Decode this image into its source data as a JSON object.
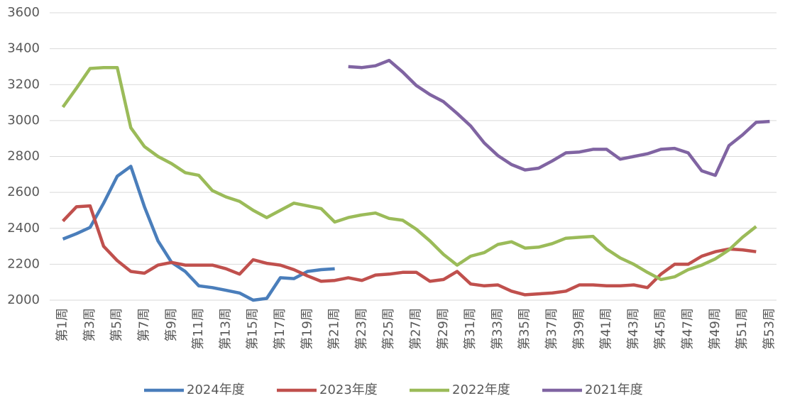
{
  "chart_data": {
    "type": "line",
    "categories": [
      "第1周",
      null,
      "第3周",
      null,
      "第5周",
      null,
      "第7周",
      null,
      "第9周",
      null,
      "第11周",
      null,
      "第13周",
      null,
      "第15周",
      null,
      "第17周",
      null,
      "第19周",
      null,
      "第21周",
      null,
      "第23周",
      null,
      "第25周",
      null,
      "第27周",
      null,
      "第29周",
      null,
      "第31周",
      null,
      "第33周",
      null,
      "第35周",
      null,
      "第37周",
      null,
      "第39周",
      null,
      "第41周",
      null,
      "第43周",
      null,
      "第45周",
      null,
      "第47周",
      null,
      "第49周",
      null,
      "第51周",
      null,
      "第53周"
    ],
    "series": [
      {
        "name": "2024年度",
        "color": "#4a7ebb",
        "values": [
          2340,
          2370,
          2405,
          2540,
          2690,
          2745,
          2520,
          2330,
          2210,
          2160,
          2080,
          2070,
          2055,
          2040,
          2000,
          2010,
          2125,
          2120,
          2160,
          2170,
          2175,
          null,
          null,
          null,
          null,
          null,
          null,
          null,
          null,
          null,
          null,
          null,
          null,
          null,
          null,
          null,
          null,
          null,
          null,
          null,
          null,
          null,
          null,
          null,
          null,
          null,
          null,
          null,
          null,
          null,
          null,
          null,
          null
        ]
      },
      {
        "name": "2023年度",
        "color": "#c0504d",
        "values": [
          2440,
          2520,
          2525,
          2300,
          2220,
          2160,
          2150,
          2195,
          2210,
          2195,
          2195,
          2195,
          2175,
          2145,
          2225,
          2205,
          2195,
          2170,
          2135,
          2105,
          2110,
          2125,
          2110,
          2140,
          2145,
          2155,
          2155,
          2105,
          2115,
          2160,
          2090,
          2080,
          2085,
          2050,
          2030,
          2035,
          2040,
          2050,
          2085,
          2085,
          2080,
          2080,
          2085,
          2070,
          2145,
          2200,
          2200,
          2245,
          2270,
          2285,
          2280,
          2270,
          null
        ]
      },
      {
        "name": "2022年度",
        "color": "#9bbb59",
        "values": [
          3075,
          3180,
          3290,
          3295,
          3295,
          2960,
          2855,
          2800,
          2760,
          2710,
          2695,
          2610,
          2575,
          2550,
          2500,
          2460,
          2500,
          2540,
          2525,
          2510,
          2435,
          2460,
          2475,
          2485,
          2455,
          2445,
          2395,
          2330,
          2255,
          2195,
          2245,
          2265,
          2310,
          2325,
          2290,
          2295,
          2315,
          2345,
          2350,
          2355,
          2285,
          2235,
          2200,
          2155,
          2115,
          2130,
          2170,
          2195,
          2230,
          2280,
          2350,
          2410,
          null
        ]
      },
      {
        "name": "2021年度",
        "color": "#8064a2",
        "values": [
          null,
          null,
          null,
          null,
          null,
          null,
          null,
          null,
          null,
          null,
          null,
          null,
          null,
          null,
          null,
          null,
          null,
          null,
          null,
          null,
          null,
          3300,
          3295,
          3305,
          3335,
          3270,
          3195,
          3145,
          3105,
          3040,
          2970,
          2875,
          2805,
          2755,
          2725,
          2735,
          2775,
          2820,
          2825,
          2840,
          2840,
          2785,
          2800,
          2815,
          2840,
          2845,
          2820,
          2720,
          2695,
          2860,
          2920,
          2990,
          2995
        ]
      }
    ],
    "ylim": [
      2000,
      3600
    ],
    "yticks": [
      2000,
      2200,
      2400,
      2600,
      2800,
      3000,
      3200,
      3400,
      3600
    ],
    "grid": true,
    "legend": "bottom"
  }
}
